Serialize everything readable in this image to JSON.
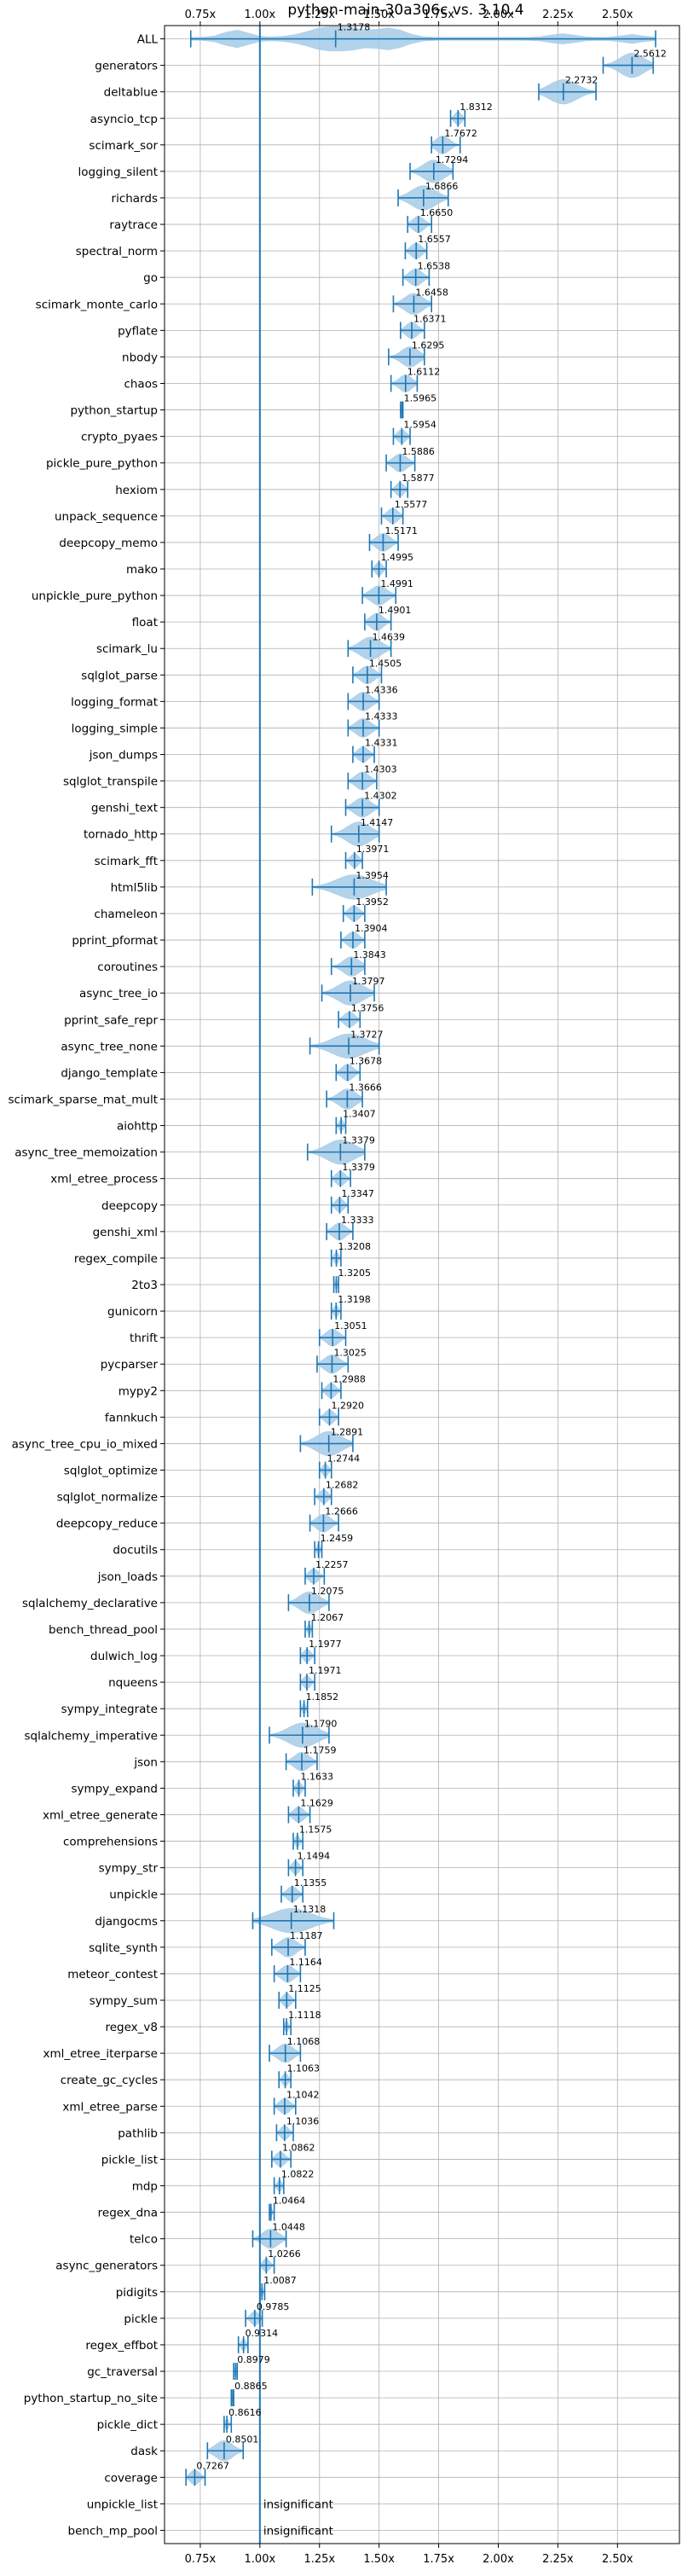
{
  "chart_data": {
    "type": "violin",
    "title": "python-main-30a306c vs. 3.10.4",
    "orientation": "horizontal",
    "xlim": [
      0.6,
      2.76
    ],
    "x_ticks": [
      0.75,
      1.0,
      1.25,
      1.5,
      1.75,
      2.0,
      2.25,
      2.5
    ],
    "x_tick_labels": [
      "0.75x",
      "1.00x",
      "1.25x",
      "1.50x",
      "1.75x",
      "2.00x",
      "2.25x",
      "2.50x"
    ],
    "x_ticks_top_and_bottom": true,
    "grid": true,
    "reference_line_x": 1.0,
    "colors": {
      "violin": "#a6cbe8",
      "marker": "#1f77b4",
      "grid": "#b0b0b0"
    },
    "insignificant_text": "insignificant",
    "benchmarks": [
      {
        "name": "ALL",
        "median": 1.3178,
        "label": "1.3178",
        "min": 0.71,
        "max": 2.66
      },
      {
        "name": "generators",
        "median": 2.5612,
        "label": "2.5612",
        "min": 2.44,
        "max": 2.65
      },
      {
        "name": "deltablue",
        "median": 2.2732,
        "label": "2.2732",
        "min": 2.17,
        "max": 2.41
      },
      {
        "name": "asyncio_tcp",
        "median": 1.8312,
        "label": "1.8312",
        "min": 1.8,
        "max": 1.86
      },
      {
        "name": "scimark_sor",
        "median": 1.7672,
        "label": "1.7672",
        "min": 1.72,
        "max": 1.84
      },
      {
        "name": "logging_silent",
        "median": 1.7294,
        "label": "1.7294",
        "min": 1.63,
        "max": 1.81
      },
      {
        "name": "richards",
        "median": 1.6866,
        "label": "1.6866",
        "min": 1.58,
        "max": 1.79
      },
      {
        "name": "raytrace",
        "median": 1.665,
        "label": "1.6650",
        "min": 1.62,
        "max": 1.72
      },
      {
        "name": "spectral_norm",
        "median": 1.6557,
        "label": "1.6557",
        "min": 1.61,
        "max": 1.7
      },
      {
        "name": "go",
        "median": 1.6538,
        "label": "1.6538",
        "min": 1.6,
        "max": 1.71
      },
      {
        "name": "scimark_monte_carlo",
        "median": 1.6458,
        "label": "1.6458",
        "min": 1.56,
        "max": 1.72
      },
      {
        "name": "pyflate",
        "median": 1.6371,
        "label": "1.6371",
        "min": 1.59,
        "max": 1.69
      },
      {
        "name": "nbody",
        "median": 1.6295,
        "label": "1.6295",
        "min": 1.54,
        "max": 1.69
      },
      {
        "name": "chaos",
        "median": 1.6112,
        "label": "1.6112",
        "min": 1.55,
        "max": 1.66
      },
      {
        "name": "python_startup",
        "median": 1.5965,
        "label": "1.5965",
        "min": 1.59,
        "max": 1.6
      },
      {
        "name": "crypto_pyaes",
        "median": 1.5954,
        "label": "1.5954",
        "min": 1.56,
        "max": 1.63
      },
      {
        "name": "pickle_pure_python",
        "median": 1.5886,
        "label": "1.5886",
        "min": 1.53,
        "max": 1.65
      },
      {
        "name": "hexiom",
        "median": 1.5877,
        "label": "1.5877",
        "min": 1.55,
        "max": 1.62
      },
      {
        "name": "unpack_sequence",
        "median": 1.5577,
        "label": "1.5577",
        "min": 1.51,
        "max": 1.6
      },
      {
        "name": "deepcopy_memo",
        "median": 1.5171,
        "label": "1.5171",
        "min": 1.46,
        "max": 1.58
      },
      {
        "name": "mako",
        "median": 1.4995,
        "label": "1.4995",
        "min": 1.47,
        "max": 1.53
      },
      {
        "name": "unpickle_pure_python",
        "median": 1.4991,
        "label": "1.4991",
        "min": 1.43,
        "max": 1.57
      },
      {
        "name": "float",
        "median": 1.4901,
        "label": "1.4901",
        "min": 1.44,
        "max": 1.55
      },
      {
        "name": "scimark_lu",
        "median": 1.4639,
        "label": "1.4639",
        "min": 1.37,
        "max": 1.55
      },
      {
        "name": "sqlglot_parse",
        "median": 1.4505,
        "label": "1.4505",
        "min": 1.39,
        "max": 1.51
      },
      {
        "name": "logging_format",
        "median": 1.4336,
        "label": "1.4336",
        "min": 1.37,
        "max": 1.5
      },
      {
        "name": "logging_simple",
        "median": 1.4333,
        "label": "1.4333",
        "min": 1.37,
        "max": 1.5
      },
      {
        "name": "json_dumps",
        "median": 1.4331,
        "label": "1.4331",
        "min": 1.39,
        "max": 1.48
      },
      {
        "name": "sqlglot_transpile",
        "median": 1.4303,
        "label": "1.4303",
        "min": 1.37,
        "max": 1.49
      },
      {
        "name": "genshi_text",
        "median": 1.4302,
        "label": "1.4302",
        "min": 1.36,
        "max": 1.5
      },
      {
        "name": "tornado_http",
        "median": 1.4147,
        "label": "1.4147",
        "min": 1.3,
        "max": 1.5
      },
      {
        "name": "scimark_fft",
        "median": 1.3971,
        "label": "1.3971",
        "min": 1.36,
        "max": 1.43
      },
      {
        "name": "html5lib",
        "median": 1.3954,
        "label": "1.3954",
        "min": 1.22,
        "max": 1.53
      },
      {
        "name": "chameleon",
        "median": 1.3952,
        "label": "1.3952",
        "min": 1.35,
        "max": 1.44
      },
      {
        "name": "pprint_pformat",
        "median": 1.3904,
        "label": "1.3904",
        "min": 1.34,
        "max": 1.44
      },
      {
        "name": "coroutines",
        "median": 1.3843,
        "label": "1.3843",
        "min": 1.3,
        "max": 1.44
      },
      {
        "name": "async_tree_io",
        "median": 1.3797,
        "label": "1.3797",
        "min": 1.26,
        "max": 1.48
      },
      {
        "name": "pprint_safe_repr",
        "median": 1.3756,
        "label": "1.3756",
        "min": 1.33,
        "max": 1.42
      },
      {
        "name": "async_tree_none",
        "median": 1.3727,
        "label": "1.3727",
        "min": 1.21,
        "max": 1.5
      },
      {
        "name": "django_template",
        "median": 1.3678,
        "label": "1.3678",
        "min": 1.32,
        "max": 1.42
      },
      {
        "name": "scimark_sparse_mat_mult",
        "median": 1.3666,
        "label": "1.3666",
        "min": 1.28,
        "max": 1.43
      },
      {
        "name": "aiohttp",
        "median": 1.3407,
        "label": "1.3407",
        "min": 1.32,
        "max": 1.36
      },
      {
        "name": "async_tree_memoization",
        "median": 1.3379,
        "label": "1.3379",
        "min": 1.2,
        "max": 1.44
      },
      {
        "name": "xml_etree_process",
        "median": 1.3379,
        "label": "1.3379",
        "min": 1.3,
        "max": 1.38
      },
      {
        "name": "deepcopy",
        "median": 1.3347,
        "label": "1.3347",
        "min": 1.3,
        "max": 1.37
      },
      {
        "name": "genshi_xml",
        "median": 1.3333,
        "label": "1.3333",
        "min": 1.28,
        "max": 1.39
      },
      {
        "name": "regex_compile",
        "median": 1.3208,
        "label": "1.3208",
        "min": 1.3,
        "max": 1.34
      },
      {
        "name": "2to3",
        "median": 1.3205,
        "label": "1.3205",
        "min": 1.31,
        "max": 1.33
      },
      {
        "name": "gunicorn",
        "median": 1.3198,
        "label": "1.3198",
        "min": 1.3,
        "max": 1.34
      },
      {
        "name": "thrift",
        "median": 1.3051,
        "label": "1.3051",
        "min": 1.25,
        "max": 1.36
      },
      {
        "name": "pycparser",
        "median": 1.3025,
        "label": "1.3025",
        "min": 1.24,
        "max": 1.37
      },
      {
        "name": "mypy2",
        "median": 1.2988,
        "label": "1.2988",
        "min": 1.26,
        "max": 1.34
      },
      {
        "name": "fannkuch",
        "median": 1.292,
        "label": "1.2920",
        "min": 1.25,
        "max": 1.33
      },
      {
        "name": "async_tree_cpu_io_mixed",
        "median": 1.2891,
        "label": "1.2891",
        "min": 1.17,
        "max": 1.39
      },
      {
        "name": "sqlglot_optimize",
        "median": 1.2744,
        "label": "1.2744",
        "min": 1.25,
        "max": 1.3
      },
      {
        "name": "sqlglot_normalize",
        "median": 1.2682,
        "label": "1.2682",
        "min": 1.23,
        "max": 1.3
      },
      {
        "name": "deepcopy_reduce",
        "median": 1.2666,
        "label": "1.2666",
        "min": 1.21,
        "max": 1.33
      },
      {
        "name": "docutils",
        "median": 1.2459,
        "label": "1.2459",
        "min": 1.23,
        "max": 1.26
      },
      {
        "name": "json_loads",
        "median": 1.2257,
        "label": "1.2257",
        "min": 1.19,
        "max": 1.27
      },
      {
        "name": "sqlalchemy_declarative",
        "median": 1.2075,
        "label": "1.2075",
        "min": 1.12,
        "max": 1.29
      },
      {
        "name": "bench_thread_pool",
        "median": 1.2067,
        "label": "1.2067",
        "min": 1.19,
        "max": 1.22
      },
      {
        "name": "dulwich_log",
        "median": 1.1977,
        "label": "1.1977",
        "min": 1.17,
        "max": 1.23
      },
      {
        "name": "nqueens",
        "median": 1.1971,
        "label": "1.1971",
        "min": 1.17,
        "max": 1.23
      },
      {
        "name": "sympy_integrate",
        "median": 1.1852,
        "label": "1.1852",
        "min": 1.17,
        "max": 1.2
      },
      {
        "name": "sqlalchemy_imperative",
        "median": 1.179,
        "label": "1.1790",
        "min": 1.04,
        "max": 1.29
      },
      {
        "name": "json",
        "median": 1.1759,
        "label": "1.1759",
        "min": 1.11,
        "max": 1.24
      },
      {
        "name": "sympy_expand",
        "median": 1.1633,
        "label": "1.1633",
        "min": 1.14,
        "max": 1.19
      },
      {
        "name": "xml_etree_generate",
        "median": 1.1629,
        "label": "1.1629",
        "min": 1.12,
        "max": 1.21
      },
      {
        "name": "comprehensions",
        "median": 1.1575,
        "label": "1.1575",
        "min": 1.14,
        "max": 1.18
      },
      {
        "name": "sympy_str",
        "median": 1.1494,
        "label": "1.1494",
        "min": 1.12,
        "max": 1.18
      },
      {
        "name": "unpickle",
        "median": 1.1355,
        "label": "1.1355",
        "min": 1.09,
        "max": 1.18
      },
      {
        "name": "djangocms",
        "median": 1.1318,
        "label": "1.1318",
        "min": 0.97,
        "max": 1.31
      },
      {
        "name": "sqlite_synth",
        "median": 1.1187,
        "label": "1.1187",
        "min": 1.05,
        "max": 1.19
      },
      {
        "name": "meteor_contest",
        "median": 1.1164,
        "label": "1.1164",
        "min": 1.06,
        "max": 1.17
      },
      {
        "name": "sympy_sum",
        "median": 1.1125,
        "label": "1.1125",
        "min": 1.08,
        "max": 1.15
      },
      {
        "name": "regex_v8",
        "median": 1.1118,
        "label": "1.1118",
        "min": 1.1,
        "max": 1.13
      },
      {
        "name": "xml_etree_iterparse",
        "median": 1.1068,
        "label": "1.1068",
        "min": 1.04,
        "max": 1.17
      },
      {
        "name": "create_gc_cycles",
        "median": 1.1063,
        "label": "1.1063",
        "min": 1.08,
        "max": 1.13
      },
      {
        "name": "xml_etree_parse",
        "median": 1.1042,
        "label": "1.1042",
        "min": 1.06,
        "max": 1.15
      },
      {
        "name": "pathlib",
        "median": 1.1036,
        "label": "1.1036",
        "min": 1.07,
        "max": 1.14
      },
      {
        "name": "pickle_list",
        "median": 1.0862,
        "label": "1.0862",
        "min": 1.05,
        "max": 1.13
      },
      {
        "name": "mdp",
        "median": 1.0822,
        "label": "1.0822",
        "min": 1.06,
        "max": 1.1
      },
      {
        "name": "regex_dna",
        "median": 1.0464,
        "label": "1.0464",
        "min": 1.04,
        "max": 1.06
      },
      {
        "name": "telco",
        "median": 1.0448,
        "label": "1.0448",
        "min": 0.97,
        "max": 1.11
      },
      {
        "name": "async_generators",
        "median": 1.0266,
        "label": "1.0266",
        "min": 1.0,
        "max": 1.06
      },
      {
        "name": "pidigits",
        "median": 1.0087,
        "label": "1.0087",
        "min": 1.0,
        "max": 1.02
      },
      {
        "name": "pickle",
        "median": 0.9785,
        "label": "0.9785",
        "min": 0.94,
        "max": 1.01
      },
      {
        "name": "regex_effbot",
        "median": 0.9314,
        "label": "0.9314",
        "min": 0.91,
        "max": 0.95
      },
      {
        "name": "gc_traversal",
        "median": 0.8979,
        "label": "0.8979",
        "min": 0.89,
        "max": 0.905
      },
      {
        "name": "python_startup_no_site",
        "median": 0.8865,
        "label": "0.8865",
        "min": 0.88,
        "max": 0.89
      },
      {
        "name": "pickle_dict",
        "median": 0.8616,
        "label": "0.8616",
        "min": 0.85,
        "max": 0.88
      },
      {
        "name": "dask",
        "median": 0.8501,
        "label": "0.8501",
        "min": 0.78,
        "max": 0.93
      },
      {
        "name": "coverage",
        "median": 0.7267,
        "label": "0.7267",
        "min": 0.69,
        "max": 0.77
      },
      {
        "name": "unpickle_list",
        "median": null,
        "label": null,
        "min": null,
        "max": null,
        "insignificant": true
      },
      {
        "name": "bench_mp_pool",
        "median": null,
        "label": null,
        "min": null,
        "max": null,
        "insignificant": true
      }
    ]
  }
}
